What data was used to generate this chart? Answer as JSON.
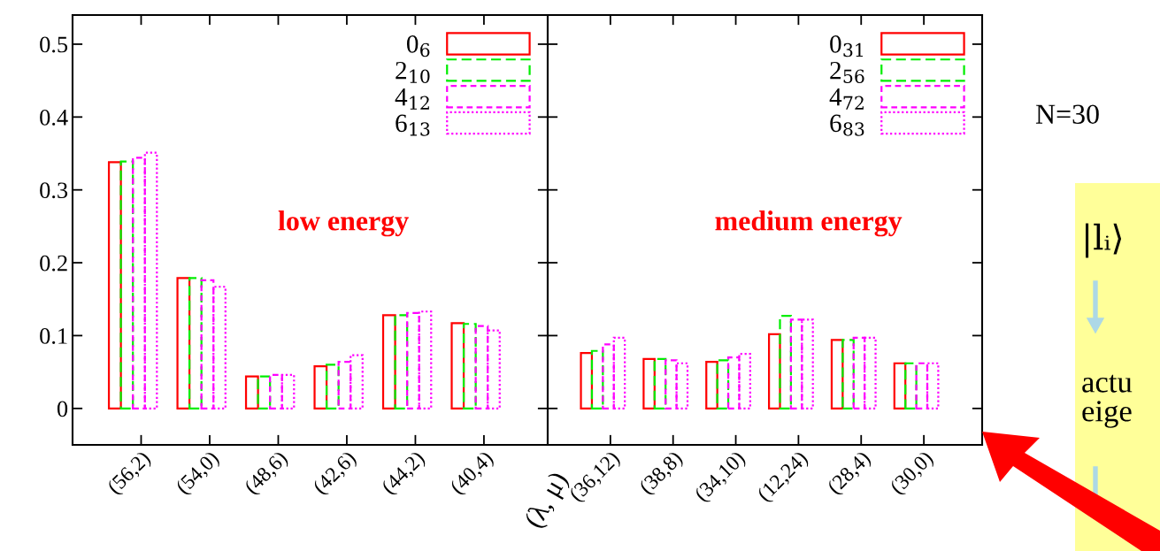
{
  "chart_data": [
    {
      "type": "bar",
      "xlabel": "(λ, μ)",
      "categories": [
        "(56,2)",
        "(54,0)",
        "(48,6)",
        "(42,6)",
        "(44,2)",
        "(40,4)"
      ],
      "series": [
        {
          "name": "0$_{6}$",
          "color": "#ff0000",
          "line_style": "solid",
          "values": [
            0.338,
            0.179,
            0.044,
            0.058,
            0.128,
            0.117
          ]
        },
        {
          "name": "2$_{10}$",
          "color": "#00ee00",
          "line_style": "dashed",
          "values": [
            0.339,
            0.179,
            0.044,
            0.06,
            0.128,
            0.116
          ]
        },
        {
          "name": "4$_{12}$",
          "color": "#ff00ff",
          "line_style": "dashed",
          "values": [
            0.344,
            0.176,
            0.046,
            0.064,
            0.131,
            0.113
          ]
        },
        {
          "name": "6$_{13}$",
          "color": "#ff00ff",
          "line_style": "dotted",
          "values": [
            0.351,
            0.167,
            0.046,
            0.073,
            0.133,
            0.107
          ]
        }
      ],
      "ylim": [
        -0.05,
        0.54
      ],
      "yticks": [
        0,
        0.1,
        0.2,
        0.3,
        0.4,
        0.5
      ],
      "grid": false,
      "legend": "top right",
      "annotations": [
        "low energy"
      ]
    },
    {
      "type": "bar",
      "categories": [
        "(36,12)",
        "(38,8)",
        "(34,10)",
        "(12,24)",
        "(28,4)",
        "(30,0)"
      ],
      "series": [
        {
          "name": "0$_{31}$",
          "color": "#ff0000",
          "line_style": "solid",
          "values": [
            0.076,
            0.068,
            0.064,
            0.102,
            0.094,
            0.062
          ]
        },
        {
          "name": "2$_{56}$",
          "color": "#00ee00",
          "line_style": "dashed",
          "values": [
            0.079,
            0.068,
            0.066,
            0.127,
            0.094,
            0.062
          ]
        },
        {
          "name": "4$_{72}$",
          "color": "#ff00ff",
          "line_style": "dashed",
          "values": [
            0.088,
            0.066,
            0.07,
            0.122,
            0.097,
            0.062
          ]
        },
        {
          "name": "6$_{83}$",
          "color": "#ff00ff",
          "line_style": "dotted",
          "values": [
            0.097,
            0.062,
            0.075,
            0.122,
            0.097,
            0.062
          ]
        }
      ],
      "ylim": [
        -0.05,
        0.54
      ],
      "yticks": [
        0,
        0.1,
        0.2,
        0.3,
        0.4,
        0.5
      ],
      "grid": false,
      "legend": "top right",
      "tick_labels": "x",
      "annotations": [
        "medium energy",
        "N=30",
        "|lᵢ⟩",
        "actu",
        "eige"
      ]
    }
  ]
}
